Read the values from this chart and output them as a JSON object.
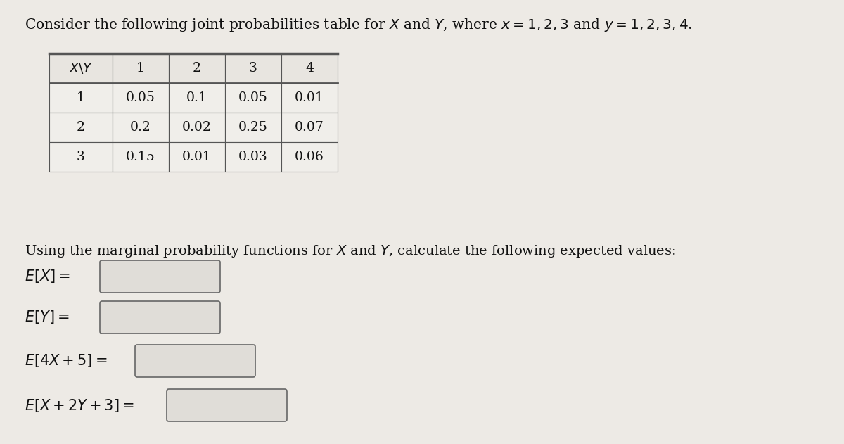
{
  "title_plain": "Consider the following joint probabilities table for ",
  "title_math1": "$X$",
  "title_and": " and ",
  "title_math2": "$Y$",
  "title_where": ", where ",
  "title_math3": "$x = 1, 2, 3$",
  "title_and2": " and ",
  "title_math4": "$y = 1, 2, 3, 4$",
  "title_end": ".",
  "subtitle_plain": "Using the marginal probability functions for ",
  "subtitle_math1": "$X$",
  "subtitle_and": " and ",
  "subtitle_math2": "$Y$",
  "subtitle_end": ", calculate the following expected values:",
  "table_header": [
    "$X\\backslash Y$",
    "1",
    "2",
    "3",
    "4"
  ],
  "table_rows": [
    [
      "1",
      "0.05",
      "0.1",
      "0.05",
      "0.01"
    ],
    [
      "2",
      "0.2",
      "0.02",
      "0.25",
      "0.07"
    ],
    [
      "3",
      "0.15",
      "0.01",
      "0.03",
      "0.06"
    ]
  ],
  "eq_labels": [
    "$E[X] =$",
    "$E[Y] =$",
    "$E[4X + 5] =$",
    "$E[X + 2Y + 3] =$"
  ],
  "bg_color": "#edeae5",
  "table_header_bg": "#e8e5e0",
  "table_row_bg": "#f0eeea",
  "table_border_color": "#555555",
  "box_fill": "#e0ddd8",
  "box_border": "#666666",
  "text_color": "#111111",
  "figsize": [
    12.0,
    6.31
  ],
  "dpi": 100
}
